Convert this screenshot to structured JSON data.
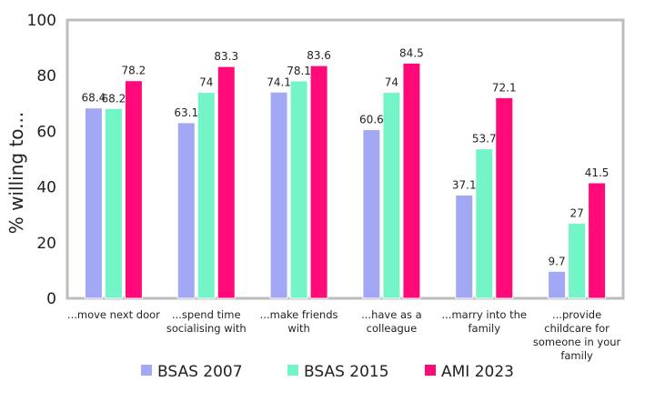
{
  "chart_data": {
    "type": "bar",
    "ylabel": "% willing to...",
    "ylim": [
      0,
      100
    ],
    "yticks": [
      0,
      20,
      40,
      60,
      80,
      100
    ],
    "grid": false,
    "legend_position": "bottom",
    "categories": [
      [
        "...move next door"
      ],
      [
        "...spend time",
        "socialising with"
      ],
      [
        "...make friends",
        "with"
      ],
      [
        "...have as a",
        "colleague"
      ],
      [
        "...marry into the",
        "family"
      ],
      [
        "...provide",
        "childcare for",
        "someone in your",
        "family"
      ]
    ],
    "series": [
      {
        "name": "BSAS 2007",
        "color": "#a3a8f5",
        "values": [
          68.4,
          63.1,
          74.1,
          60.6,
          37.1,
          9.7
        ]
      },
      {
        "name": "BSAS 2015",
        "color": "#74f5c8",
        "values": [
          68.2,
          74,
          78.1,
          74,
          53.7,
          27
        ]
      },
      {
        "name": "AMI 2023",
        "color": "#ff0a78",
        "values": [
          78.2,
          83.3,
          83.6,
          84.5,
          72.1,
          41.5
        ]
      }
    ]
  }
}
